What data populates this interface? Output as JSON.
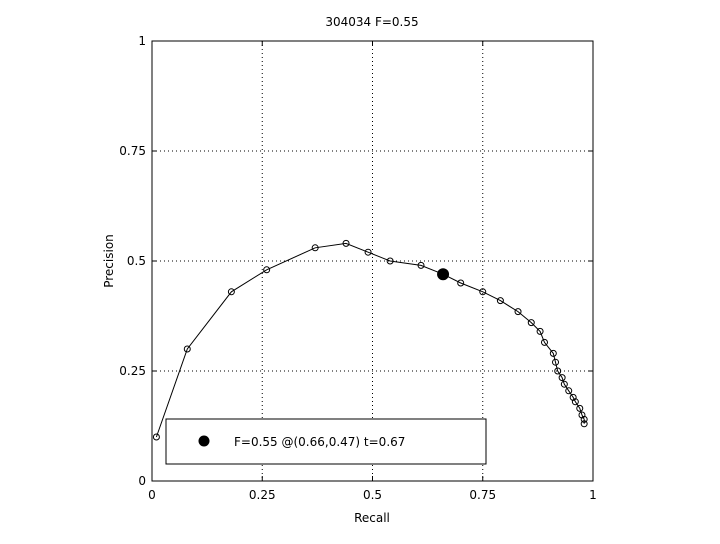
{
  "chart_data": {
    "type": "line",
    "title": "304034 F=0.55",
    "xlabel": "Recall",
    "ylabel": "Precision",
    "xlim": [
      0,
      1
    ],
    "ylim": [
      0,
      1
    ],
    "grid": true,
    "xticks": [
      {
        "value": 0,
        "label": "0"
      },
      {
        "value": 0.25,
        "label": "0.25"
      },
      {
        "value": 0.5,
        "label": "0.5"
      },
      {
        "value": 0.75,
        "label": "0.75"
      },
      {
        "value": 1,
        "label": "1"
      }
    ],
    "yticks": [
      {
        "value": 0,
        "label": "0"
      },
      {
        "value": 0.25,
        "label": "0.25"
      },
      {
        "value": 0.5,
        "label": "0.5"
      },
      {
        "value": 0.75,
        "label": "0.75"
      },
      {
        "value": 1,
        "label": "1"
      }
    ],
    "series": [
      {
        "marker": "open-circle",
        "color": "#000000",
        "points": [
          [
            0.01,
            0.1
          ],
          [
            0.08,
            0.3
          ],
          [
            0.18,
            0.43
          ],
          [
            0.26,
            0.48
          ],
          [
            0.37,
            0.53
          ],
          [
            0.44,
            0.54
          ],
          [
            0.49,
            0.52
          ],
          [
            0.54,
            0.5
          ],
          [
            0.61,
            0.49
          ],
          [
            0.66,
            0.47
          ],
          [
            0.7,
            0.45
          ],
          [
            0.75,
            0.43
          ],
          [
            0.79,
            0.41
          ],
          [
            0.83,
            0.385
          ],
          [
            0.86,
            0.36
          ],
          [
            0.88,
            0.34
          ],
          [
            0.89,
            0.315
          ],
          [
            0.91,
            0.29
          ],
          [
            0.915,
            0.27
          ],
          [
            0.92,
            0.25
          ],
          [
            0.93,
            0.235
          ],
          [
            0.935,
            0.22
          ],
          [
            0.945,
            0.205
          ],
          [
            0.955,
            0.19
          ],
          [
            0.96,
            0.18
          ],
          [
            0.97,
            0.165
          ],
          [
            0.975,
            0.15
          ],
          [
            0.98,
            0.14
          ],
          [
            0.98,
            0.13
          ]
        ]
      }
    ],
    "highlight": {
      "x": 0.66,
      "y": 0.47,
      "marker": "filled-circle",
      "color": "#000000"
    },
    "legend": {
      "position": "bottom",
      "text": "F=0.55 @(0.66,0.47) t=0.67"
    }
  }
}
